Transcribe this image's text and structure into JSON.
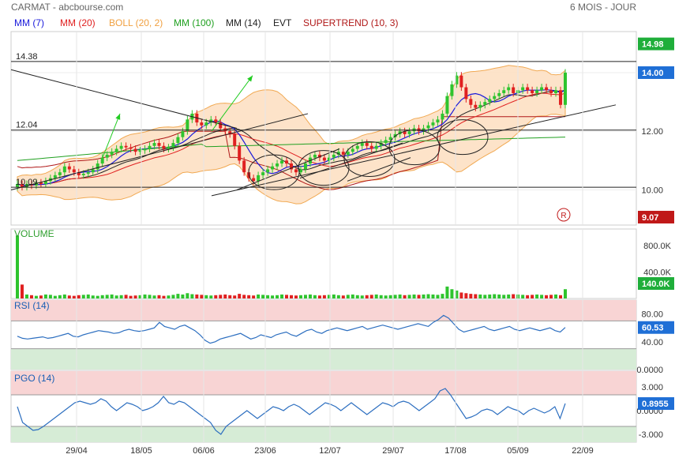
{
  "header": {
    "title": "CARMAT - abcbourse.com",
    "period": "6 MOIS - JOUR"
  },
  "indicators": [
    {
      "label": "MM (7)",
      "color": "#1a1adb"
    },
    {
      "label": "MM (20)",
      "color": "#e02020"
    },
    {
      "label": "BOLL (20, 2)",
      "color": "#f0a040"
    },
    {
      "label": "MM (100)",
      "color": "#20a020"
    },
    {
      "label": "MM (14)",
      "color": "#222222"
    },
    {
      "label": "EVT",
      "color": "#222222"
    },
    {
      "label": "SUPERTREND (10, 3)",
      "color": "#b01818"
    }
  ],
  "colors": {
    "up": "#2ec42e",
    "down": "#e02020",
    "boll_fill": "#fde0c4",
    "boll_line": "#f0a040",
    "mm7": "#1a1adb",
    "mm20": "#e02020",
    "mm100": "#20a020",
    "mm14": "#222222",
    "supertrend": "#b01818",
    "badge_green": "#1fae3a",
    "badge_blue": "#1f6fd6",
    "badge_red": "#c01818",
    "osc_line": "#2d6fc0",
    "zone_red": "#f8d4d4",
    "zone_green": "#d6ecd6"
  },
  "chart_data": {
    "type": "candlestick",
    "x_labels": [
      "29/04",
      "18/05",
      "06/06",
      "23/06",
      "12/07",
      "29/07",
      "17/08",
      "05/09",
      "22/09"
    ],
    "price": {
      "y_ticks": [
        "12.00",
        "10.00"
      ],
      "ylim": [
        8.8,
        15.4
      ],
      "h_lines": [
        {
          "value": 14.38,
          "label": "14.38"
        },
        {
          "value": 12.04,
          "label": "12.04"
        },
        {
          "value": 10.09,
          "label": "10.09"
        }
      ],
      "badges": [
        {
          "value": 14.98,
          "label": "14.98",
          "color": "badge_green"
        },
        {
          "value": 14.0,
          "label": "14.00",
          "color": "badge_blue"
        },
        {
          "value": 9.07,
          "label": "9.07",
          "color": "badge_red"
        }
      ],
      "closes": [
        10.2,
        10.1,
        10.2,
        10.15,
        10.25,
        10.2,
        10.3,
        10.4,
        10.5,
        10.6,
        10.8,
        10.7,
        10.6,
        10.5,
        10.55,
        10.6,
        10.7,
        10.9,
        11.1,
        11.2,
        11.3,
        11.4,
        11.5,
        11.45,
        11.4,
        11.3,
        11.35,
        11.4,
        11.5,
        11.6,
        11.5,
        11.4,
        11.45,
        11.6,
        11.8,
        12.0,
        12.4,
        12.6,
        12.3,
        12.2,
        12.3,
        12.4,
        12.3,
        12.1,
        12.0,
        11.9,
        11.5,
        11.0,
        10.6,
        10.4,
        10.3,
        10.5,
        10.6,
        10.7,
        10.8,
        10.9,
        11.0,
        10.9,
        10.7,
        10.6,
        10.7,
        10.9,
        11.1,
        11.2,
        11.1,
        11.0,
        11.1,
        11.2,
        11.3,
        11.2,
        11.3,
        11.4,
        11.5,
        11.6,
        11.5,
        11.4,
        11.5,
        11.6,
        11.7,
        11.8,
        11.9,
        12.0,
        11.9,
        12.0,
        12.1,
        12.0,
        12.1,
        12.2,
        12.3,
        12.4,
        12.6,
        13.2,
        13.6,
        13.9,
        13.5,
        13.1,
        12.9,
        12.8,
        12.9,
        13.0,
        13.1,
        13.2,
        13.3,
        13.4,
        13.5,
        13.3,
        13.4,
        13.5,
        13.4,
        13.3,
        13.4,
        13.5,
        13.4,
        13.3,
        13.4,
        12.9,
        14.0
      ],
      "mm100_start": 11.3,
      "mm100_end": 11.8,
      "r_marker": {
        "label": "R",
        "value": 9.07
      }
    },
    "volume": {
      "label": "VOLUME",
      "y_ticks": [
        "800.0K",
        "400.0K"
      ],
      "ylim": [
        0,
        1000000
      ],
      "badge": {
        "label": "140.0K",
        "color": "badge_green"
      },
      "values": [
        950000,
        210000,
        60000,
        50000,
        40000,
        45000,
        60000,
        55000,
        40000,
        50000,
        60000,
        45000,
        40000,
        50000,
        55000,
        60000,
        45000,
        40000,
        50000,
        55000,
        60000,
        45000,
        50000,
        55000,
        40000,
        45000,
        50000,
        60000,
        55000,
        45000,
        50000,
        40000,
        45000,
        55000,
        70000,
        60000,
        80000,
        65000,
        60000,
        55000,
        50000,
        45000,
        50000,
        55000,
        60000,
        50000,
        45000,
        70000,
        55000,
        50000,
        45000,
        60000,
        55000,
        50000,
        45000,
        50000,
        60000,
        55000,
        50000,
        45000,
        50000,
        55000,
        60000,
        50000,
        45000,
        50000,
        55000,
        60000,
        50000,
        45000,
        55000,
        60000,
        50000,
        45000,
        50000,
        55000,
        60000,
        50000,
        45000,
        50000,
        55000,
        60000,
        50000,
        55000,
        60000,
        55000,
        60000,
        65000,
        60000,
        55000,
        70000,
        180000,
        140000,
        120000,
        90000,
        80000,
        70000,
        65000,
        60000,
        55000,
        60000,
        65000,
        60000,
        55000,
        60000,
        65000,
        60000,
        55000,
        50000,
        55000,
        60000,
        55000,
        50000,
        55000,
        60000,
        50000,
        140000
      ]
    },
    "rsi": {
      "label": "RSI (14)",
      "y_ticks": [
        "80.00",
        "40.00",
        "0.0000"
      ],
      "ylim": [
        0,
        100
      ],
      "zones": [
        70,
        30
      ],
      "badge": {
        "label": "60.53",
        "color": "badge_blue"
      },
      "values": [
        48,
        45,
        44,
        45,
        46,
        47,
        45,
        46,
        48,
        50,
        52,
        48,
        47,
        50,
        52,
        54,
        56,
        55,
        54,
        52,
        53,
        56,
        58,
        56,
        55,
        56,
        58,
        60,
        68,
        62,
        60,
        58,
        62,
        64,
        60,
        56,
        50,
        42,
        38,
        40,
        44,
        46,
        48,
        50,
        52,
        48,
        44,
        46,
        50,
        48,
        46,
        50,
        52,
        54,
        50,
        48,
        52,
        56,
        58,
        54,
        52,
        56,
        58,
        60,
        58,
        56,
        58,
        60,
        62,
        58,
        60,
        62,
        64,
        62,
        60,
        58,
        60,
        62,
        64,
        66,
        64,
        62,
        68,
        72,
        78,
        74,
        66,
        58,
        54,
        56,
        58,
        60,
        62,
        58,
        56,
        58,
        60,
        62,
        58,
        56,
        58,
        60,
        58,
        56,
        58,
        60,
        56,
        54,
        60.53
      ],
      "line_color": "osc_line"
    },
    "pgo": {
      "label": "PGO (14)",
      "y_ticks": [
        "3.000",
        "0.0000",
        "-3.000"
      ],
      "ylim": [
        -4,
        5
      ],
      "zones": [
        2,
        -2
      ],
      "badge": {
        "label": "0.8955",
        "color": "badge_blue"
      },
      "values": [
        0.5,
        -1.5,
        -2.0,
        -2.5,
        -2.4,
        -2.0,
        -1.5,
        -1.0,
        -0.5,
        0.0,
        0.5,
        1.0,
        1.2,
        1.0,
        0.8,
        1.0,
        1.5,
        1.2,
        0.5,
        0.0,
        0.5,
        1.0,
        0.8,
        0.5,
        0.0,
        0.2,
        0.5,
        1.0,
        1.8,
        1.0,
        0.8,
        1.2,
        1.0,
        0.5,
        0.0,
        -0.5,
        -1.0,
        -1.5,
        -2.5,
        -3.0,
        -2.0,
        -1.5,
        -1.0,
        -0.5,
        0.0,
        -0.5,
        -1.0,
        -0.5,
        0.0,
        0.5,
        0.3,
        0.0,
        0.5,
        0.8,
        0.5,
        0.0,
        -0.5,
        0.0,
        0.5,
        1.0,
        0.8,
        0.5,
        0.0,
        0.5,
        1.0,
        0.5,
        0.0,
        -0.5,
        0.0,
        0.5,
        1.0,
        0.8,
        0.5,
        1.0,
        1.2,
        1.0,
        0.5,
        0.0,
        0.5,
        1.0,
        1.5,
        2.5,
        2.8,
        2.0,
        1.0,
        0.0,
        -1.0,
        -0.8,
        -0.5,
        0.0,
        0.2,
        0.0,
        -0.5,
        0.0,
        0.5,
        0.2,
        0.0,
        -0.5,
        0.0,
        0.3,
        0.0,
        -0.3,
        0.0,
        0.5,
        -1.0,
        0.8955
      ],
      "line_color": "osc_line"
    }
  }
}
